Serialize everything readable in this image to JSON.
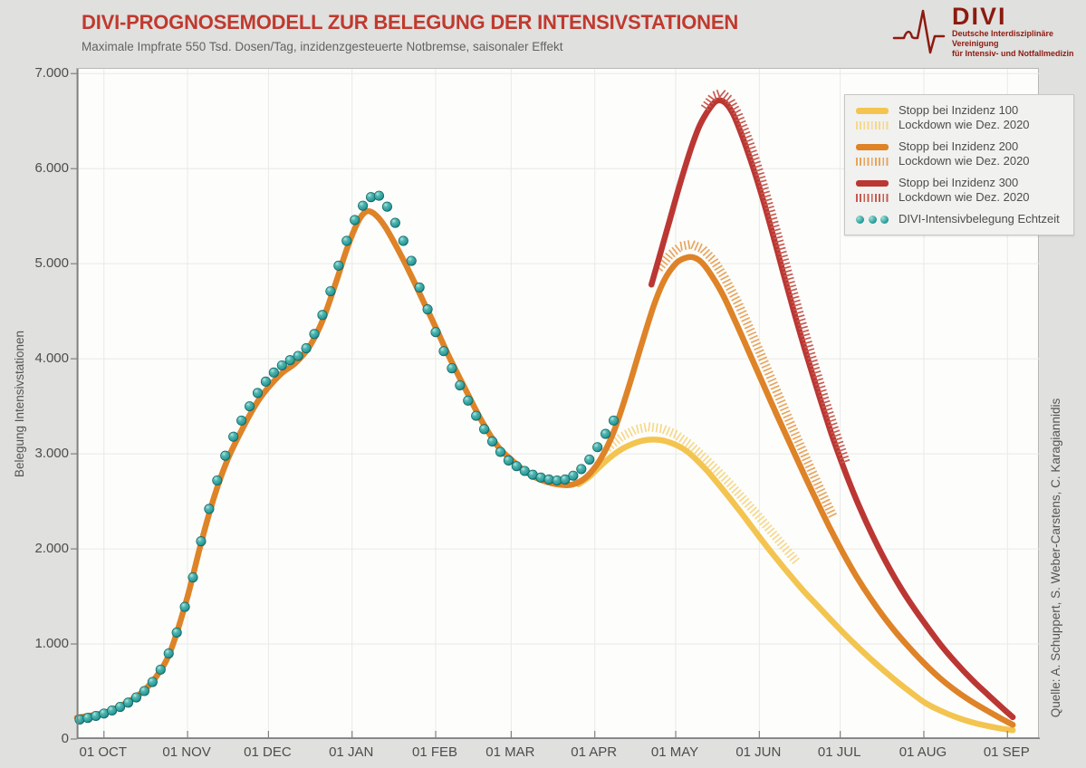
{
  "header": {
    "title": "DIVI-PROGNOSEMODELL ZUR BELEGUNG DER INTENSIVSTATIONEN",
    "subtitle": "Maximale Impfrate 550 Tsd. Dosen/Tag, inzidenzgesteuerte Notbremse, saisonaler Effekt",
    "title_color": "#C0392E"
  },
  "logo": {
    "name": "DIVI",
    "tagline_line1": "Deutsche Interdisziplinäre Vereinigung",
    "tagline_line2": "für Intensiv- und Notfallmedizin",
    "color": "#8C1A10"
  },
  "source_note": "Quelle: A. Schuppert, S. Weber-Carstens, C. Karagiannidis",
  "chart_data": {
    "type": "line",
    "title": "DIVI-Prognosemodell zur Belegung der Intensivstationen",
    "xlabel": "",
    "ylabel": "Belegung Intensivstationen",
    "ylim": [
      0,
      7050
    ],
    "yticks": [
      0,
      1000,
      2000,
      3000,
      4000,
      5000,
      6000,
      7000
    ],
    "ytick_labels": [
      "0",
      "1.000",
      "2.000",
      "3.000",
      "4.000",
      "5.000",
      "6.000",
      "7.000"
    ],
    "x_unit": "days since 01 OCT",
    "xlim_days": [
      -10,
      347
    ],
    "xticks_days": [
      0,
      31,
      61,
      92,
      123,
      151,
      182,
      212,
      243,
      273,
      304,
      335
    ],
    "xtick_labels": [
      "01 OCT",
      "01 NOV",
      "01 DEC",
      "01 JAN",
      "01 FEB",
      "01 MAR",
      "01 APR",
      "01 MAY",
      "01 JUN",
      "01 JUL",
      "01 AUG",
      "01 SEP"
    ],
    "grid": true,
    "legend_position": "top-right",
    "legend": [
      {
        "style": "solid",
        "color": "#F3C44F",
        "label": "Stopp bei Inzidenz 100",
        "gap": false
      },
      {
        "style": "hatch",
        "color": "#F6D88A",
        "label": "Lockdown wie Dez. 2020",
        "gap": false
      },
      {
        "style": "solid",
        "color": "#DE8327",
        "label": "Stopp bei Inzidenz 200",
        "gap": true
      },
      {
        "style": "hatch",
        "color": "#E8A55D",
        "label": "Lockdown wie Dez. 2020",
        "gap": false
      },
      {
        "style": "solid",
        "color": "#BB3733",
        "label": "Stopp bei Inzidenz 300",
        "gap": true
      },
      {
        "style": "hatch",
        "color": "#C75B51",
        "label": "Lockdown wie Dez. 2020",
        "gap": false
      },
      {
        "style": "dots",
        "color": "#2FA3A0",
        "label": "DIVI-Intensivbelegung Echtzeit",
        "gap": true
      }
    ],
    "series": [
      {
        "id": "inzidenz100",
        "label": "Stopp bei Inzidenz 100",
        "style": "solid",
        "color": "#F3C44F",
        "width": 6.5,
        "points": [
          [
            176,
            2680
          ],
          [
            180,
            2760
          ],
          [
            184,
            2870
          ],
          [
            188,
            2970
          ],
          [
            192,
            3050
          ],
          [
            196,
            3105
          ],
          [
            200,
            3140
          ],
          [
            204,
            3150
          ],
          [
            208,
            3135
          ],
          [
            212,
            3095
          ],
          [
            216,
            3030
          ],
          [
            220,
            2930
          ],
          [
            224,
            2810
          ],
          [
            228,
            2675
          ],
          [
            232,
            2535
          ],
          [
            236,
            2390
          ],
          [
            240,
            2240
          ],
          [
            244,
            2090
          ],
          [
            248,
            1945
          ],
          [
            252,
            1805
          ],
          [
            256,
            1670
          ],
          [
            260,
            1540
          ],
          [
            266,
            1360
          ],
          [
            272,
            1180
          ],
          [
            278,
            1010
          ],
          [
            284,
            850
          ],
          [
            290,
            700
          ],
          [
            296,
            560
          ],
          [
            304,
            390
          ],
          [
            310,
            300
          ],
          [
            316,
            230
          ],
          [
            322,
            175
          ],
          [
            328,
            135
          ],
          [
            333,
            108
          ],
          [
            337,
            92
          ]
        ]
      },
      {
        "id": "inzidenz100_lockdown",
        "label": "Lockdown wie Dez. 2020 (Inzidenz 100)",
        "style": "hatch",
        "color": "#F6D88A",
        "points": [
          [
            187,
            3060
          ],
          [
            192,
            3175
          ],
          [
            197,
            3250
          ],
          [
            202,
            3280
          ],
          [
            207,
            3260
          ],
          [
            212,
            3200
          ],
          [
            217,
            3100
          ],
          [
            222,
            2970
          ],
          [
            227,
            2830
          ],
          [
            232,
            2680
          ],
          [
            237,
            2520
          ],
          [
            242,
            2360
          ],
          [
            247,
            2190
          ],
          [
            252,
            2020
          ],
          [
            257,
            1850
          ]
        ]
      },
      {
        "id": "inzidenz200",
        "label": "Stopp bei Inzidenz 200",
        "style": "solid",
        "color": "#DE8327",
        "width": 6.5,
        "points": [
          [
            -10,
            225
          ],
          [
            0,
            275
          ],
          [
            7,
            360
          ],
          [
            14,
            490
          ],
          [
            20,
            680
          ],
          [
            25,
            950
          ],
          [
            31,
            1500
          ],
          [
            36,
            2060
          ],
          [
            41,
            2560
          ],
          [
            46,
            2950
          ],
          [
            52,
            3300
          ],
          [
            57,
            3550
          ],
          [
            61,
            3700
          ],
          [
            66,
            3850
          ],
          [
            71,
            3955
          ],
          [
            76,
            4120
          ],
          [
            81,
            4400
          ],
          [
            86,
            4800
          ],
          [
            90,
            5150
          ],
          [
            94,
            5430
          ],
          [
            97,
            5545
          ],
          [
            100,
            5530
          ],
          [
            104,
            5400
          ],
          [
            109,
            5150
          ],
          [
            114,
            4870
          ],
          [
            119,
            4570
          ],
          [
            123,
            4330
          ],
          [
            128,
            4020
          ],
          [
            134,
            3680
          ],
          [
            140,
            3350
          ],
          [
            146,
            3080
          ],
          [
            151,
            2940
          ],
          [
            157,
            2800
          ],
          [
            163,
            2715
          ],
          [
            169,
            2675
          ],
          [
            174,
            2680
          ],
          [
            179,
            2760
          ],
          [
            184,
            2940
          ],
          [
            189,
            3230
          ],
          [
            194,
            3650
          ],
          [
            199,
            4120
          ],
          [
            204,
            4570
          ],
          [
            208,
            4840
          ],
          [
            212,
            5000
          ],
          [
            215,
            5055
          ],
          [
            218,
            5070
          ],
          [
            221,
            5030
          ],
          [
            224,
            4930
          ],
          [
            229,
            4700
          ],
          [
            234,
            4400
          ],
          [
            239,
            4080
          ],
          [
            244,
            3760
          ],
          [
            249,
            3440
          ],
          [
            254,
            3130
          ],
          [
            259,
            2820
          ],
          [
            264,
            2520
          ],
          [
            269,
            2230
          ],
          [
            274,
            1960
          ],
          [
            279,
            1710
          ],
          [
            284,
            1490
          ],
          [
            289,
            1290
          ],
          [
            294,
            1110
          ],
          [
            299,
            950
          ],
          [
            304,
            800
          ],
          [
            310,
            640
          ],
          [
            316,
            505
          ],
          [
            322,
            390
          ],
          [
            328,
            290
          ],
          [
            333,
            210
          ],
          [
            337,
            150
          ]
        ]
      },
      {
        "id": "inzidenz200_lockdown",
        "label": "Lockdown wie Dez. 2020 (Inzidenz 200)",
        "style": "hatch",
        "color": "#E8A55D",
        "points": [
          [
            206,
            4950
          ],
          [
            210,
            5090
          ],
          [
            214,
            5180
          ],
          [
            218,
            5200
          ],
          [
            222,
            5150
          ],
          [
            226,
            5030
          ],
          [
            230,
            4850
          ],
          [
            235,
            4580
          ],
          [
            240,
            4270
          ],
          [
            245,
            3940
          ],
          [
            250,
            3610
          ],
          [
            255,
            3280
          ],
          [
            260,
            2960
          ],
          [
            265,
            2650
          ],
          [
            270,
            2350
          ]
        ]
      },
      {
        "id": "inzidenz300",
        "label": "Stopp bei Inzidenz 300",
        "style": "solid",
        "color": "#BB3733",
        "width": 6.5,
        "points": [
          [
            203,
            4780
          ],
          [
            206,
            5080
          ],
          [
            210,
            5480
          ],
          [
            214,
            5880
          ],
          [
            218,
            6240
          ],
          [
            221,
            6460
          ],
          [
            224,
            6610
          ],
          [
            227,
            6710
          ],
          [
            230,
            6700
          ],
          [
            233,
            6590
          ],
          [
            236,
            6390
          ],
          [
            240,
            6070
          ],
          [
            244,
            5710
          ],
          [
            248,
            5310
          ],
          [
            252,
            4890
          ],
          [
            256,
            4480
          ],
          [
            260,
            4090
          ],
          [
            265,
            3630
          ],
          [
            270,
            3190
          ],
          [
            275,
            2800
          ],
          [
            280,
            2450
          ],
          [
            285,
            2140
          ],
          [
            290,
            1860
          ],
          [
            295,
            1610
          ],
          [
            300,
            1390
          ],
          [
            304,
            1230
          ],
          [
            310,
            1000
          ],
          [
            316,
            800
          ],
          [
            322,
            620
          ],
          [
            328,
            460
          ],
          [
            333,
            330
          ],
          [
            337,
            230
          ]
        ]
      },
      {
        "id": "inzidenz300_lockdown",
        "label": "Lockdown wie Dez. 2020 (Inzidenz 300)",
        "style": "hatch",
        "color": "#C75B51",
        "points": [
          [
            223,
            6640
          ],
          [
            226,
            6760
          ],
          [
            229,
            6790
          ],
          [
            232,
            6720
          ],
          [
            235,
            6570
          ],
          [
            239,
            6290
          ],
          [
            243,
            5950
          ],
          [
            247,
            5560
          ],
          [
            251,
            5150
          ],
          [
            255,
            4740
          ],
          [
            259,
            4340
          ],
          [
            263,
            3950
          ],
          [
            267,
            3580
          ],
          [
            271,
            3230
          ],
          [
            275,
            2900
          ]
        ]
      },
      {
        "id": "echtzeit",
        "label": "DIVI-Intensivbelegung Echtzeit",
        "style": "dots",
        "color": "#2FA3A0",
        "points": [
          [
            -9,
            205
          ],
          [
            -6,
            222
          ],
          [
            -3,
            243
          ],
          [
            0,
            268
          ],
          [
            3,
            300
          ],
          [
            6,
            338
          ],
          [
            9,
            383
          ],
          [
            12,
            438
          ],
          [
            15,
            505
          ],
          [
            18,
            600
          ],
          [
            21,
            730
          ],
          [
            24,
            900
          ],
          [
            27,
            1120
          ],
          [
            30,
            1390
          ],
          [
            33,
            1700
          ],
          [
            36,
            2080
          ],
          [
            39,
            2420
          ],
          [
            42,
            2720
          ],
          [
            45,
            2980
          ],
          [
            48,
            3180
          ],
          [
            51,
            3350
          ],
          [
            54,
            3500
          ],
          [
            57,
            3640
          ],
          [
            60,
            3760
          ],
          [
            63,
            3855
          ],
          [
            66,
            3930
          ],
          [
            69,
            3985
          ],
          [
            72,
            4030
          ],
          [
            75,
            4110
          ],
          [
            78,
            4260
          ],
          [
            81,
            4460
          ],
          [
            84,
            4710
          ],
          [
            87,
            4980
          ],
          [
            90,
            5240
          ],
          [
            93,
            5460
          ],
          [
            96,
            5610
          ],
          [
            99,
            5700
          ],
          [
            102,
            5715
          ],
          [
            105,
            5600
          ],
          [
            108,
            5430
          ],
          [
            111,
            5240
          ],
          [
            114,
            5030
          ],
          [
            117,
            4750
          ],
          [
            120,
            4520
          ],
          [
            123,
            4280
          ],
          [
            126,
            4080
          ],
          [
            129,
            3900
          ],
          [
            132,
            3720
          ],
          [
            135,
            3560
          ],
          [
            138,
            3400
          ],
          [
            141,
            3260
          ],
          [
            144,
            3130
          ],
          [
            147,
            3020
          ],
          [
            150,
            2930
          ],
          [
            153,
            2870
          ],
          [
            156,
            2820
          ],
          [
            159,
            2780
          ],
          [
            162,
            2750
          ],
          [
            165,
            2730
          ],
          [
            168,
            2720
          ],
          [
            171,
            2730
          ],
          [
            174,
            2770
          ],
          [
            177,
            2840
          ],
          [
            180,
            2940
          ],
          [
            183,
            3070
          ],
          [
            186,
            3210
          ],
          [
            189,
            3350
          ]
        ]
      }
    ]
  }
}
